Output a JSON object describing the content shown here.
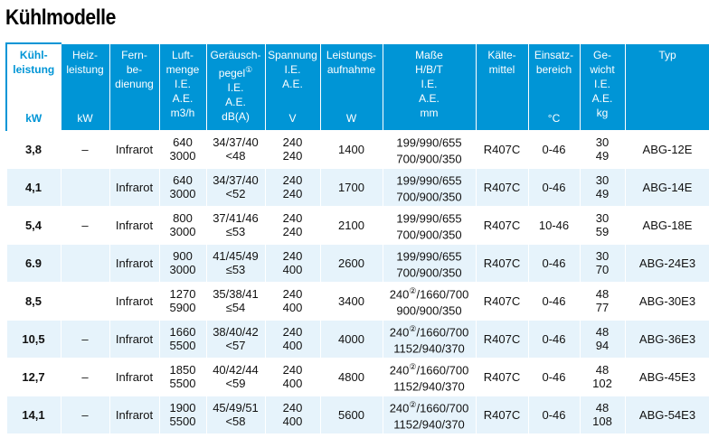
{
  "title": "Kühlmodelle",
  "header": [
    {
      "lines": [
        "Kühl-",
        "leistung"
      ],
      "unit": "kW",
      "note": ""
    },
    {
      "lines": [
        "Heiz-",
        "leistung"
      ],
      "unit": "kW",
      "note": ""
    },
    {
      "lines": [
        "Fern-",
        "be-",
        "dienung"
      ],
      "unit": "",
      "note": ""
    },
    {
      "lines": [
        "Luft-",
        "menge",
        "I.E.",
        "A.E.",
        "m3/h"
      ],
      "unit": "",
      "note": ""
    },
    {
      "lines": [
        "Geräusch-",
        "pegel",
        "I.E.",
        "A.E.",
        "dB(A)"
      ],
      "unit": "",
      "note": "①"
    },
    {
      "lines": [
        "Spannung",
        "",
        "I.E.",
        "A.E."
      ],
      "unit": "V",
      "note": ""
    },
    {
      "lines": [
        "Leistungs-",
        "aufnahme"
      ],
      "unit": "W",
      "note": ""
    },
    {
      "lines": [
        "Maße",
        "H/B/T",
        "I.E.",
        "A.E.",
        "mm"
      ],
      "unit": "",
      "note": ""
    },
    {
      "lines": [
        "Kälte-",
        "mittel"
      ],
      "unit": "",
      "note": ""
    },
    {
      "lines": [
        "Einsatz-",
        "bereich"
      ],
      "unit": "°C",
      "note": ""
    },
    {
      "lines": [
        "Ge-",
        "wicht",
        "I.E.",
        "A.E.",
        "kg"
      ],
      "unit": "",
      "note": ""
    },
    {
      "lines": [
        "Typ"
      ],
      "unit": "",
      "note": ""
    }
  ],
  "rows": [
    {
      "kuehl": "3,8",
      "heiz": "–",
      "fern": "Infrarot",
      "luft": [
        "640",
        "3000"
      ],
      "geraeusch": [
        "34/37/40",
        "<48"
      ],
      "spannung": [
        "240",
        "240"
      ],
      "leistung": "1400",
      "masse": [
        {
          "pre": "",
          "note": "",
          "post": "199/990/655"
        },
        {
          "pre": "",
          "note": "",
          "post": "700/900/350"
        }
      ],
      "kaelte": "R407C",
      "einsatz": "0-46",
      "gewicht": [
        "30",
        "49"
      ],
      "typ": "ABG-12E"
    },
    {
      "kuehl": "4,1",
      "heiz": "",
      "fern": "Infrarot",
      "luft": [
        "640",
        "3000"
      ],
      "geraeusch": [
        "34/37/40",
        "<52"
      ],
      "spannung": [
        "240",
        "240"
      ],
      "leistung": "1700",
      "masse": [
        {
          "pre": "",
          "note": "",
          "post": "199/990/655"
        },
        {
          "pre": "",
          "note": "",
          "post": "700/900/350"
        }
      ],
      "kaelte": "R407C",
      "einsatz": "0-46",
      "gewicht": [
        "30",
        "49"
      ],
      "typ": "ABG-14E"
    },
    {
      "kuehl": "5,4",
      "heiz": "–",
      "fern": "Infrarot",
      "luft": [
        "800",
        "3000"
      ],
      "geraeusch": [
        "37/41/46",
        "≤53"
      ],
      "spannung": [
        "240",
        "240"
      ],
      "leistung": "2100",
      "masse": [
        {
          "pre": "",
          "note": "",
          "post": "199/990/655"
        },
        {
          "pre": "",
          "note": "",
          "post": "700/900/350"
        }
      ],
      "kaelte": "R407C",
      "einsatz": "10-46",
      "gewicht": [
        "30",
        "59"
      ],
      "typ": "ABG-18E"
    },
    {
      "kuehl": "6.9",
      "heiz": "",
      "fern": "Infrarot",
      "luft": [
        "900",
        "3000"
      ],
      "geraeusch": [
        "41/45/49",
        "≤53"
      ],
      "spannung": [
        "240",
        "400"
      ],
      "leistung": "2600",
      "masse": [
        {
          "pre": "",
          "note": "",
          "post": "199/990/655"
        },
        {
          "pre": "",
          "note": "",
          "post": "700/900/350"
        }
      ],
      "kaelte": "R407C",
      "einsatz": "0-46",
      "gewicht": [
        "30",
        "70"
      ],
      "typ": "ABG-24E3"
    },
    {
      "kuehl": "8,5",
      "heiz": "",
      "fern": "Infrarot",
      "luft": [
        "1270",
        "5900"
      ],
      "geraeusch": [
        "35/38/41",
        "≤54"
      ],
      "spannung": [
        "240",
        "400"
      ],
      "leistung": "3400",
      "masse": [
        {
          "pre": "240",
          "note": "②",
          "post": "/1660/700"
        },
        {
          "pre": "",
          "note": "",
          "post": "900/900/350"
        }
      ],
      "kaelte": "R407C",
      "einsatz": "0-46",
      "gewicht": [
        "48",
        "77"
      ],
      "typ": "ABG-30E3"
    },
    {
      "kuehl": "10,5",
      "heiz": "–",
      "fern": "Infrarot",
      "luft": [
        "1660",
        "5500"
      ],
      "geraeusch": [
        "38/40/42",
        "<57"
      ],
      "spannung": [
        "240",
        "400"
      ],
      "leistung": "4000",
      "masse": [
        {
          "pre": "240",
          "note": "②",
          "post": "/1660/700"
        },
        {
          "pre": "",
          "note": "",
          "post": "1152/940/370"
        }
      ],
      "kaelte": "R407C",
      "einsatz": "0-46",
      "gewicht": [
        "48",
        "94"
      ],
      "typ": "ABG-36E3"
    },
    {
      "kuehl": "12,7",
      "heiz": "–",
      "fern": "Infrarot",
      "luft": [
        "1850",
        "5500"
      ],
      "geraeusch": [
        "40/42/44",
        "<59"
      ],
      "spannung": [
        "240",
        "400"
      ],
      "leistung": "4800",
      "masse": [
        {
          "pre": "240",
          "note": "②",
          "post": "/1660/700"
        },
        {
          "pre": "",
          "note": "",
          "post": "1152/940/370"
        }
      ],
      "kaelte": "R407C",
      "einsatz": "0-46",
      "gewicht": [
        "48",
        "102"
      ],
      "typ": "ABG-45E3"
    },
    {
      "kuehl": "14,1",
      "heiz": "–",
      "fern": "Infrarot",
      "luft": [
        "1900",
        "5500"
      ],
      "geraeusch": [
        "45/49/51",
        "<58"
      ],
      "spannung": [
        "240",
        "400"
      ],
      "leistung": "5600",
      "masse": [
        {
          "pre": "240",
          "note": "②",
          "post": "/1660/700"
        },
        {
          "pre": "",
          "note": "",
          "post": "1152/940/370"
        }
      ],
      "kaelte": "R407C",
      "einsatz": "0-46",
      "gewicht": [
        "48",
        "108"
      ],
      "typ": "ABG-54E3"
    }
  ]
}
